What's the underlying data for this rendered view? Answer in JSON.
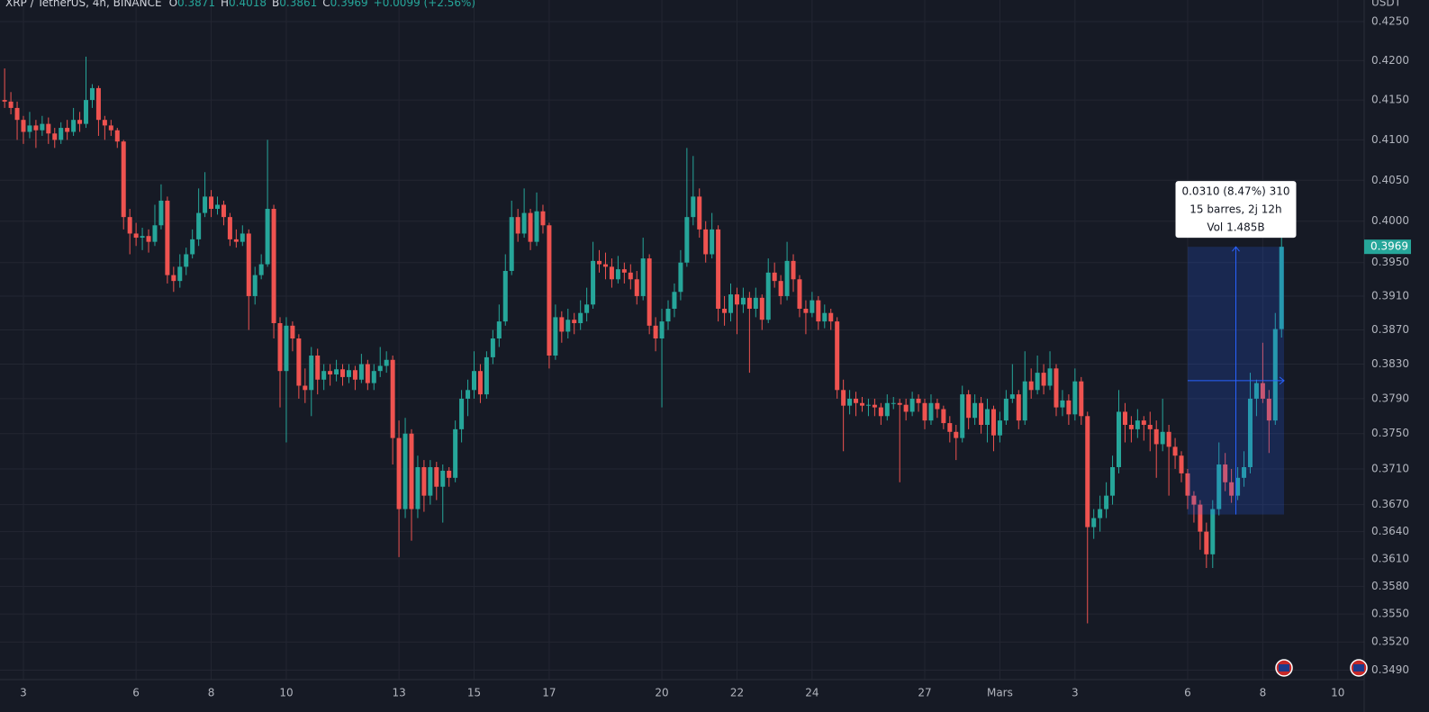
{
  "chart_data": {
    "type": "candlestick",
    "title": "XRP / TetherUS, 4h, BINANCE",
    "ohlc_labels": [
      "O",
      "H",
      "B",
      "C"
    ],
    "change": "+0.0099 (+2.56%)",
    "unit": "USDT",
    "log_scale": true,
    "grid": true,
    "up_color": "#26a69a",
    "down_color": "#ef5350",
    "ohlc": [
      [
        0.415,
        0.419,
        0.414,
        0.4148
      ],
      [
        0.4148,
        0.416,
        0.4132,
        0.414
      ],
      [
        0.414,
        0.4148,
        0.41,
        0.4125
      ],
      [
        0.4125,
        0.413,
        0.4095,
        0.411
      ],
      [
        0.411,
        0.4135,
        0.4102,
        0.4118
      ],
      [
        0.4118,
        0.4125,
        0.409,
        0.4112
      ],
      [
        0.4112,
        0.413,
        0.4105,
        0.412
      ],
      [
        0.412,
        0.4128,
        0.4095,
        0.4108
      ],
      [
        0.4108,
        0.4115,
        0.409,
        0.41
      ],
      [
        0.41,
        0.4122,
        0.4095,
        0.4115
      ],
      [
        0.4115,
        0.4125,
        0.41,
        0.411
      ],
      [
        0.411,
        0.414,
        0.4105,
        0.4125
      ],
      [
        0.4125,
        0.4135,
        0.411,
        0.412
      ],
      [
        0.412,
        0.4205,
        0.4115,
        0.415
      ],
      [
        0.415,
        0.417,
        0.414,
        0.4165
      ],
      [
        0.4165,
        0.4168,
        0.4105,
        0.4125
      ],
      [
        0.4125,
        0.413,
        0.41,
        0.4118
      ],
      [
        0.4118,
        0.4125,
        0.4105,
        0.4112
      ],
      [
        0.4112,
        0.4115,
        0.409,
        0.4098
      ],
      [
        0.4098,
        0.41,
        0.399,
        0.4005
      ],
      [
        0.4005,
        0.4015,
        0.396,
        0.3985
      ],
      [
        0.3985,
        0.3998,
        0.397,
        0.398
      ],
      [
        0.398,
        0.3992,
        0.3965,
        0.3982
      ],
      [
        0.3982,
        0.399,
        0.3962,
        0.3975
      ],
      [
        0.3975,
        0.402,
        0.397,
        0.3995
      ],
      [
        0.3995,
        0.4045,
        0.399,
        0.4025
      ],
      [
        0.4025,
        0.403,
        0.3925,
        0.3935
      ],
      [
        0.3935,
        0.3945,
        0.3915,
        0.3928
      ],
      [
        0.3928,
        0.396,
        0.392,
        0.3945
      ],
      [
        0.3945,
        0.3968,
        0.3935,
        0.396
      ],
      [
        0.396,
        0.399,
        0.3955,
        0.3978
      ],
      [
        0.3978,
        0.404,
        0.397,
        0.401
      ],
      [
        0.401,
        0.406,
        0.4005,
        0.403
      ],
      [
        0.403,
        0.4038,
        0.4005,
        0.4015
      ],
      [
        0.4015,
        0.403,
        0.4008,
        0.402
      ],
      [
        0.402,
        0.4025,
        0.3995,
        0.4005
      ],
      [
        0.4005,
        0.401,
        0.397,
        0.3978
      ],
      [
        0.3978,
        0.399,
        0.3968,
        0.3975
      ],
      [
        0.3975,
        0.3995,
        0.397,
        0.3985
      ],
      [
        0.3985,
        0.399,
        0.387,
        0.391
      ],
      [
        0.391,
        0.3945,
        0.39,
        0.3935
      ],
      [
        0.3935,
        0.396,
        0.393,
        0.3948
      ],
      [
        0.3948,
        0.41,
        0.3945,
        0.4015
      ],
      [
        0.4015,
        0.402,
        0.386,
        0.3878
      ],
      [
        0.3878,
        0.3885,
        0.378,
        0.3822
      ],
      [
        0.3822,
        0.3885,
        0.374,
        0.3875
      ],
      [
        0.3875,
        0.388,
        0.3845,
        0.386
      ],
      [
        0.386,
        0.3865,
        0.379,
        0.3805
      ],
      [
        0.3805,
        0.3825,
        0.3785,
        0.38
      ],
      [
        0.38,
        0.385,
        0.377,
        0.384
      ],
      [
        0.384,
        0.3848,
        0.3795,
        0.3812
      ],
      [
        0.3812,
        0.383,
        0.38,
        0.3822
      ],
      [
        0.3822,
        0.383,
        0.3805,
        0.3818
      ],
      [
        0.3818,
        0.3835,
        0.381,
        0.3824
      ],
      [
        0.3824,
        0.383,
        0.3805,
        0.3815
      ],
      [
        0.3815,
        0.383,
        0.3808,
        0.3823
      ],
      [
        0.3823,
        0.3828,
        0.38,
        0.3812
      ],
      [
        0.3812,
        0.3842,
        0.3808,
        0.383
      ],
      [
        0.383,
        0.3835,
        0.38,
        0.3808
      ],
      [
        0.3808,
        0.383,
        0.38,
        0.3822
      ],
      [
        0.3822,
        0.385,
        0.3815,
        0.3828
      ],
      [
        0.3828,
        0.3845,
        0.382,
        0.3835
      ],
      [
        0.3835,
        0.384,
        0.3715,
        0.3745
      ],
      [
        0.3745,
        0.3765,
        0.3612,
        0.3665
      ],
      [
        0.3665,
        0.3768,
        0.3655,
        0.375
      ],
      [
        0.375,
        0.3755,
        0.363,
        0.3665
      ],
      [
        0.3665,
        0.3725,
        0.3655,
        0.3712
      ],
      [
        0.3712,
        0.372,
        0.3662,
        0.368
      ],
      [
        0.368,
        0.372,
        0.367,
        0.3712
      ],
      [
        0.3712,
        0.3718,
        0.3675,
        0.369
      ],
      [
        0.369,
        0.3715,
        0.365,
        0.3708
      ],
      [
        0.3708,
        0.3712,
        0.369,
        0.37
      ],
      [
        0.37,
        0.3765,
        0.3695,
        0.3755
      ],
      [
        0.3755,
        0.38,
        0.374,
        0.379
      ],
      [
        0.379,
        0.3812,
        0.377,
        0.38
      ],
      [
        0.38,
        0.3845,
        0.379,
        0.3822
      ],
      [
        0.3822,
        0.383,
        0.3785,
        0.3795
      ],
      [
        0.3795,
        0.3845,
        0.379,
        0.3838
      ],
      [
        0.3838,
        0.387,
        0.383,
        0.386
      ],
      [
        0.386,
        0.39,
        0.385,
        0.388
      ],
      [
        0.388,
        0.396,
        0.3875,
        0.394
      ],
      [
        0.394,
        0.4025,
        0.3935,
        0.4005
      ],
      [
        0.4005,
        0.4015,
        0.3975,
        0.3985
      ],
      [
        0.3985,
        0.404,
        0.398,
        0.401
      ],
      [
        0.401,
        0.4015,
        0.3965,
        0.3975
      ],
      [
        0.3975,
        0.4035,
        0.397,
        0.4012
      ],
      [
        0.4012,
        0.402,
        0.3985,
        0.3995
      ],
      [
        0.3995,
        0.3998,
        0.3825,
        0.384
      ],
      [
        0.384,
        0.39,
        0.3835,
        0.3885
      ],
      [
        0.3885,
        0.3892,
        0.3855,
        0.3868
      ],
      [
        0.3868,
        0.3895,
        0.386,
        0.3882
      ],
      [
        0.3882,
        0.389,
        0.3865,
        0.3878
      ],
      [
        0.3878,
        0.3905,
        0.387,
        0.389
      ],
      [
        0.389,
        0.392,
        0.388,
        0.39
      ],
      [
        0.39,
        0.3975,
        0.3895,
        0.3952
      ],
      [
        0.3952,
        0.3965,
        0.3938,
        0.3948
      ],
      [
        0.3948,
        0.3962,
        0.393,
        0.3945
      ],
      [
        0.3945,
        0.3955,
        0.392,
        0.393
      ],
      [
        0.393,
        0.3958,
        0.3925,
        0.3942
      ],
      [
        0.3942,
        0.395,
        0.3925,
        0.3938
      ],
      [
        0.3938,
        0.3948,
        0.3918,
        0.393
      ],
      [
        0.393,
        0.394,
        0.39,
        0.391
      ],
      [
        0.391,
        0.398,
        0.3905,
        0.3955
      ],
      [
        0.3955,
        0.396,
        0.3865,
        0.3875
      ],
      [
        0.3875,
        0.3885,
        0.3845,
        0.386
      ],
      [
        0.386,
        0.3895,
        0.378,
        0.388
      ],
      [
        0.388,
        0.3905,
        0.387,
        0.3895
      ],
      [
        0.3895,
        0.3925,
        0.3885,
        0.3915
      ],
      [
        0.3915,
        0.3965,
        0.3905,
        0.395
      ],
      [
        0.395,
        0.409,
        0.3945,
        0.4005
      ],
      [
        0.4005,
        0.408,
        0.3995,
        0.403
      ],
      [
        0.403,
        0.404,
        0.398,
        0.399
      ],
      [
        0.399,
        0.4,
        0.395,
        0.396
      ],
      [
        0.396,
        0.401,
        0.3955,
        0.399
      ],
      [
        0.399,
        0.3995,
        0.388,
        0.3895
      ],
      [
        0.3895,
        0.391,
        0.3875,
        0.389
      ],
      [
        0.389,
        0.3925,
        0.388,
        0.3912
      ],
      [
        0.3912,
        0.392,
        0.3865,
        0.39
      ],
      [
        0.39,
        0.392,
        0.389,
        0.3908
      ],
      [
        0.3908,
        0.3915,
        0.382,
        0.3895
      ],
      [
        0.3895,
        0.392,
        0.3885,
        0.3908
      ],
      [
        0.3908,
        0.3912,
        0.387,
        0.3882
      ],
      [
        0.3882,
        0.3955,
        0.3878,
        0.3938
      ],
      [
        0.3938,
        0.395,
        0.392,
        0.3928
      ],
      [
        0.3928,
        0.3935,
        0.39,
        0.391
      ],
      [
        0.391,
        0.3975,
        0.3905,
        0.3952
      ],
      [
        0.3952,
        0.396,
        0.3915,
        0.393
      ],
      [
        0.393,
        0.3935,
        0.3885,
        0.3895
      ],
      [
        0.3895,
        0.3905,
        0.3865,
        0.389
      ],
      [
        0.389,
        0.3915,
        0.3885,
        0.3905
      ],
      [
        0.3905,
        0.391,
        0.387,
        0.388
      ],
      [
        0.388,
        0.39,
        0.3872,
        0.389
      ],
      [
        0.389,
        0.3895,
        0.387,
        0.388
      ],
      [
        0.388,
        0.3885,
        0.379,
        0.38
      ],
      [
        0.38,
        0.3812,
        0.373,
        0.3782
      ],
      [
        0.3782,
        0.38,
        0.3772,
        0.379
      ],
      [
        0.379,
        0.3798,
        0.377,
        0.3785
      ],
      [
        0.3785,
        0.3792,
        0.3775,
        0.3782
      ],
      [
        0.3782,
        0.379,
        0.377,
        0.3783
      ],
      [
        0.3783,
        0.379,
        0.377,
        0.378
      ],
      [
        0.378,
        0.3785,
        0.376,
        0.377
      ],
      [
        0.377,
        0.3795,
        0.3765,
        0.3785
      ],
      [
        0.3785,
        0.3792,
        0.3778,
        0.3785
      ],
      [
        0.3785,
        0.379,
        0.3695,
        0.3783
      ],
      [
        0.3783,
        0.379,
        0.3765,
        0.3775
      ],
      [
        0.3775,
        0.3798,
        0.377,
        0.379
      ],
      [
        0.379,
        0.3795,
        0.3775,
        0.3785
      ],
      [
        0.3785,
        0.379,
        0.3755,
        0.3765
      ],
      [
        0.3765,
        0.3795,
        0.376,
        0.3785
      ],
      [
        0.3785,
        0.379,
        0.3768,
        0.3778
      ],
      [
        0.3778,
        0.3782,
        0.3755,
        0.3762
      ],
      [
        0.3762,
        0.377,
        0.374,
        0.3752
      ],
      [
        0.3752,
        0.376,
        0.372,
        0.3745
      ],
      [
        0.3745,
        0.3805,
        0.374,
        0.3795
      ],
      [
        0.3795,
        0.38,
        0.3755,
        0.3768
      ],
      [
        0.3768,
        0.3795,
        0.376,
        0.3785
      ],
      [
        0.3785,
        0.3792,
        0.375,
        0.376
      ],
      [
        0.376,
        0.379,
        0.374,
        0.3778
      ],
      [
        0.3778,
        0.3782,
        0.373,
        0.3748
      ],
      [
        0.3748,
        0.3775,
        0.374,
        0.3765
      ],
      [
        0.3765,
        0.38,
        0.376,
        0.379
      ],
      [
        0.379,
        0.383,
        0.3785,
        0.3795
      ],
      [
        0.3795,
        0.38,
        0.3755,
        0.3765
      ],
      [
        0.3765,
        0.3845,
        0.376,
        0.381
      ],
      [
        0.381,
        0.3825,
        0.379,
        0.38
      ],
      [
        0.38,
        0.384,
        0.3795,
        0.382
      ],
      [
        0.382,
        0.383,
        0.3795,
        0.3805
      ],
      [
        0.3805,
        0.3845,
        0.38,
        0.3825
      ],
      [
        0.3825,
        0.383,
        0.377,
        0.378
      ],
      [
        0.378,
        0.38,
        0.377,
        0.3788
      ],
      [
        0.3788,
        0.3795,
        0.376,
        0.3772
      ],
      [
        0.3772,
        0.3825,
        0.3765,
        0.381
      ],
      [
        0.381,
        0.3815,
        0.376,
        0.377
      ],
      [
        0.377,
        0.3775,
        0.354,
        0.3645
      ],
      [
        0.3645,
        0.3665,
        0.3632,
        0.3655
      ],
      [
        0.3655,
        0.368,
        0.364,
        0.3665
      ],
      [
        0.3665,
        0.3695,
        0.3655,
        0.368
      ],
      [
        0.368,
        0.3725,
        0.367,
        0.3712
      ],
      [
        0.3712,
        0.38,
        0.3705,
        0.3775
      ],
      [
        0.3775,
        0.3785,
        0.374,
        0.376
      ],
      [
        0.376,
        0.377,
        0.374,
        0.3755
      ],
      [
        0.3755,
        0.3778,
        0.3745,
        0.3765
      ],
      [
        0.3765,
        0.377,
        0.3742,
        0.376
      ],
      [
        0.376,
        0.3775,
        0.373,
        0.3755
      ],
      [
        0.3755,
        0.3765,
        0.37,
        0.3738
      ],
      [
        0.3738,
        0.379,
        0.373,
        0.3752
      ],
      [
        0.3752,
        0.376,
        0.368,
        0.3735
      ],
      [
        0.3735,
        0.3745,
        0.371,
        0.3725
      ],
      [
        0.3725,
        0.373,
        0.3695,
        0.3705
      ],
      [
        0.3705,
        0.371,
        0.3665,
        0.368
      ],
      [
        0.368,
        0.3685,
        0.365,
        0.367
      ],
      [
        0.367,
        0.3675,
        0.362,
        0.364
      ],
      [
        0.364,
        0.365,
        0.36,
        0.3615
      ],
      [
        0.3615,
        0.3675,
        0.36,
        0.3665
      ],
      [
        0.3665,
        0.374,
        0.3658,
        0.3715
      ],
      [
        0.3715,
        0.3728,
        0.3685,
        0.3695
      ],
      [
        0.3695,
        0.371,
        0.3672,
        0.368
      ],
      [
        0.368,
        0.3712,
        0.3675,
        0.37
      ],
      [
        0.37,
        0.373,
        0.369,
        0.3712
      ],
      [
        0.3712,
        0.382,
        0.3705,
        0.379
      ],
      [
        0.379,
        0.3812,
        0.377,
        0.3808
      ],
      [
        0.3808,
        0.3855,
        0.3785,
        0.379
      ],
      [
        0.379,
        0.38,
        0.3728,
        0.3765
      ],
      [
        0.3765,
        0.389,
        0.376,
        0.3871
      ],
      [
        0.3871,
        0.4018,
        0.3861,
        0.3969
      ]
    ],
    "xlim": [
      -0.74,
      217.2
    ],
    "xticks": [
      {
        "value": 3,
        "label": "3"
      },
      {
        "value": 21,
        "label": "6"
      },
      {
        "value": 33,
        "label": "8"
      },
      {
        "value": 45,
        "label": "10"
      },
      {
        "value": 63,
        "label": "13"
      },
      {
        "value": 75,
        "label": "15"
      },
      {
        "value": 87,
        "label": "17"
      },
      {
        "value": 105,
        "label": "20"
      },
      {
        "value": 117,
        "label": "22"
      },
      {
        "value": 129,
        "label": "24"
      },
      {
        "value": 147,
        "label": "27"
      },
      {
        "value": 159,
        "label": "Mars"
      },
      {
        "value": 171,
        "label": "3"
      },
      {
        "value": 189,
        "label": "6"
      },
      {
        "value": 201,
        "label": "8"
      },
      {
        "value": 213,
        "label": "10"
      }
    ],
    "ylim": [
      0.348,
      0.4278
    ],
    "yticks": [
      {
        "value": 0.425,
        "label": "0.4250"
      },
      {
        "value": 0.42,
        "label": "0.4200"
      },
      {
        "value": 0.415,
        "label": "0.4150"
      },
      {
        "value": 0.41,
        "label": "0.4100"
      },
      {
        "value": 0.405,
        "label": "0.4050"
      },
      {
        "value": 0.4,
        "label": "0.4000"
      },
      {
        "value": 0.395,
        "label": "0.3950"
      },
      {
        "value": 0.391,
        "label": "0.3910"
      },
      {
        "value": 0.387,
        "label": "0.3870"
      },
      {
        "value": 0.383,
        "label": "0.3830"
      },
      {
        "value": 0.379,
        "label": "0.3790"
      },
      {
        "value": 0.375,
        "label": "0.3750"
      },
      {
        "value": 0.371,
        "label": "0.3710"
      },
      {
        "value": 0.367,
        "label": "0.3670"
      },
      {
        "value": 0.364,
        "label": "0.3640"
      },
      {
        "value": 0.361,
        "label": "0.3610"
      },
      {
        "value": 0.358,
        "label": "0.3580"
      },
      {
        "value": 0.355,
        "label": "0.3550"
      },
      {
        "value": 0.352,
        "label": "0.3520"
      },
      {
        "value": 0.349,
        "label": "0.3490"
      }
    ],
    "measure": {
      "from": 0.3659,
      "to": 0.3969,
      "start_bar": 189,
      "end_bar": 204,
      "color": "#2962ff",
      "lines": [
        "0.0310 (8.47%) 310",
        "15 barres, 2j 12h",
        "Vol 1.485B"
      ]
    }
  }
}
